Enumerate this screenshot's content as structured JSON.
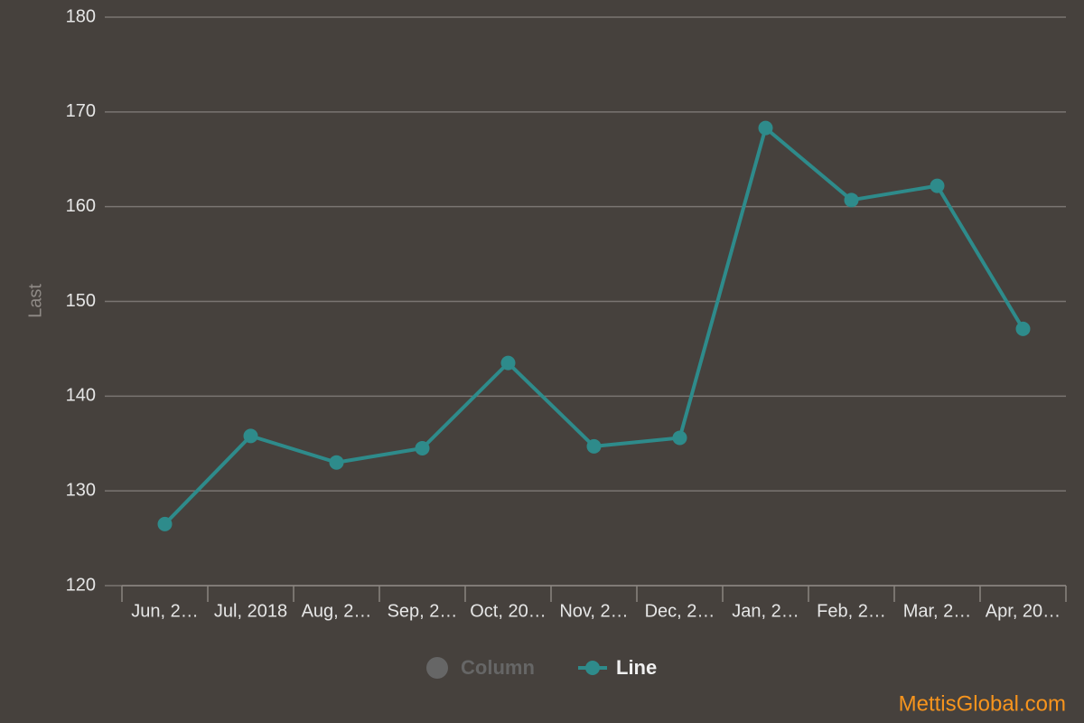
{
  "chart_data": {
    "type": "line",
    "y_axis_title": "Last",
    "categories": [
      "Jun, 2…",
      "Jul, 2018",
      "Aug, 2…",
      "Sep, 2…",
      "Oct, 20…",
      "Nov, 2…",
      "Dec, 2…",
      "Jan, 2…",
      "Feb, 2…",
      "Mar, 2…",
      "Apr, 20…"
    ],
    "series": [
      {
        "name": "Line",
        "color": "#2e8b8b",
        "values": [
          126.5,
          135.8,
          133.0,
          134.5,
          143.5,
          134.7,
          135.6,
          168.3,
          160.7,
          162.2,
          147.1
        ]
      }
    ],
    "hidden_legend_entries": [
      {
        "name": "Column",
        "color": "#666666"
      }
    ],
    "ylim": [
      120,
      180
    ],
    "yticks": [
      120,
      130,
      140,
      150,
      160,
      170,
      180
    ],
    "grid": true,
    "legend": "bottom",
    "credit": "MettisGlobal.com"
  }
}
